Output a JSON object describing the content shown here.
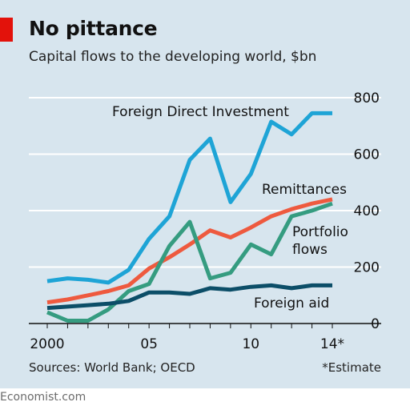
{
  "header": {
    "title": "No pittance",
    "subtitle": "Capital flows to the developing world, $bn"
  },
  "footer": {
    "source": "Sources: World Bank; OECD",
    "note": "*Estimate",
    "brand": "Economist.com"
  },
  "colors": {
    "background": "#d7e5ee",
    "accent": "#e3120b"
  },
  "chart_data": {
    "type": "line",
    "x": [
      2000,
      2001,
      2002,
      2003,
      2004,
      2005,
      2006,
      2007,
      2008,
      2009,
      2010,
      2011,
      2012,
      2013,
      2014
    ],
    "xticks": [
      {
        "value": 2000,
        "label": "2000"
      },
      {
        "value": 2005,
        "label": "05"
      },
      {
        "value": 2010,
        "label": "10"
      },
      {
        "value": 2014,
        "label": "14*"
      }
    ],
    "yticks": [
      0,
      200,
      400,
      600,
      800
    ],
    "ylim": [
      0,
      800
    ],
    "xlim": [
      2000,
      2014
    ],
    "grid": true,
    "yaxis_side": "right",
    "series": [
      {
        "name": "Foreign Direct Investment",
        "color": "#1ea4d6",
        "values": [
          150,
          160,
          155,
          145,
          190,
          300,
          380,
          580,
          655,
          430,
          530,
          715,
          670,
          745,
          745
        ]
      },
      {
        "name": "Remittances",
        "color": "#ee5a3f",
        "values": [
          75,
          85,
          100,
          115,
          135,
          195,
          235,
          280,
          330,
          305,
          340,
          380,
          405,
          425,
          440
        ]
      },
      {
        "name": "Portfolio flows",
        "color": "#359c80",
        "values": [
          40,
          10,
          10,
          50,
          115,
          140,
          275,
          360,
          160,
          180,
          280,
          245,
          380,
          400,
          425
        ]
      },
      {
        "name": "Foreign aid",
        "color": "#0c4e68",
        "values": [
          55,
          60,
          65,
          70,
          80,
          110,
          110,
          105,
          125,
          120,
          130,
          135,
          125,
          135,
          135
        ]
      }
    ],
    "annotations": [
      {
        "series": "Foreign Direct Investment",
        "text": "Foreign Direct Investment"
      },
      {
        "series": "Remittances",
        "text": "Remittances"
      },
      {
        "series": "Portfolio flows",
        "lines": [
          "Portfolio",
          "flows"
        ]
      },
      {
        "series": "Foreign aid",
        "text": "Foreign aid"
      }
    ]
  }
}
